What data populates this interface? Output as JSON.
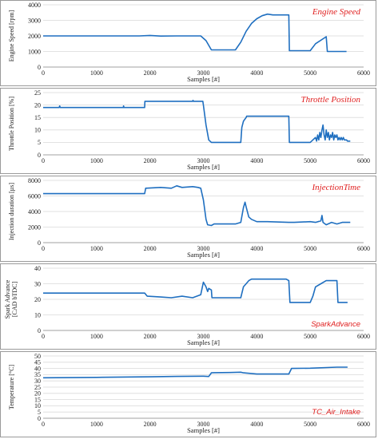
{
  "chart_data": [
    {
      "type": "line",
      "series": [
        {
          "name": "Engine Speed",
          "style": "serif",
          "x": [
            0,
            1500,
            1800,
            2000,
            2200,
            2500,
            2950,
            3050,
            3150,
            3600,
            3700,
            3800,
            3900,
            4000,
            4100,
            4200,
            4300,
            4550,
            4600,
            4610,
            5000,
            5100,
            5300,
            5320,
            5600,
            5680
          ],
          "y": [
            2000,
            2000,
            2000,
            2030,
            1990,
            2000,
            2000,
            1700,
            1100,
            1100,
            1600,
            2300,
            2800,
            3100,
            3300,
            3400,
            3350,
            3350,
            3350,
            1050,
            1050,
            1500,
            1950,
            1000,
            1000,
            1000
          ]
        }
      ],
      "xlabel": "Samples [#]",
      "ylabel": [
        "Engine Speed [rpm]"
      ],
      "xlim": [
        0,
        6000
      ],
      "ylim": [
        0,
        4000
      ],
      "xticks": [
        "0",
        "1000",
        "2000",
        "3000",
        "4000",
        "5000",
        "6000"
      ],
      "yticks": [
        "0",
        "1000",
        "2000",
        "3000",
        "4000"
      ],
      "legend_position": "top-right"
    },
    {
      "type": "line",
      "series": [
        {
          "name": "Throttle Position",
          "style": "serif",
          "x": [
            0,
            300,
            310,
            320,
            1500,
            1505,
            1515,
            1900,
            1905,
            2800,
            2805,
            2815,
            2990,
            3000,
            3050,
            3100,
            3150,
            3200,
            3700,
            3720,
            3750,
            3800,
            3810,
            4600,
            4610,
            5000,
            5050,
            5100,
            5120,
            5140,
            5160,
            5180,
            5200,
            5220,
            5240,
            5260,
            5280,
            5300,
            5320,
            5340,
            5360,
            5380,
            5400,
            5420,
            5440,
            5460,
            5480,
            5500,
            5520,
            5540,
            5560,
            5580,
            5600,
            5620,
            5640,
            5660,
            5680,
            5700,
            5750
          ],
          "y": [
            19,
            19,
            19.6,
            19,
            19,
            19.6,
            19,
            19,
            21.5,
            21.5,
            21.9,
            21.5,
            21.5,
            20,
            12,
            6,
            5,
            5,
            5,
            11,
            13.5,
            15,
            15.5,
            15.5,
            5,
            5,
            6,
            7,
            5.5,
            8,
            6,
            9,
            7,
            10,
            12,
            8,
            6,
            10,
            7,
            9,
            6,
            8,
            7,
            9,
            6,
            8,
            7,
            8,
            6,
            7,
            6,
            7,
            6,
            7,
            6,
            6,
            6,
            5.5,
            5.5
          ]
        }
      ],
      "xlabel": "Samples [#]",
      "ylabel": [
        "Throttle Position  [%]"
      ],
      "xlim": [
        0,
        6000
      ],
      "ylim": [
        0,
        25
      ],
      "xticks": [
        "0",
        "1000",
        "2000",
        "3000",
        "4000",
        "5000",
        "6000"
      ],
      "yticks": [
        "0",
        "5",
        "10",
        "15",
        "20",
        "25"
      ],
      "legend_position": "top-right"
    },
    {
      "type": "line",
      "series": [
        {
          "name": "InjectionTime",
          "style": "serif",
          "x": [
            0,
            1900,
            1920,
            2200,
            2400,
            2500,
            2600,
            2800,
            2900,
            2950,
            3000,
            3050,
            3080,
            3150,
            3200,
            3600,
            3700,
            3750,
            3780,
            3800,
            3850,
            3900,
            4000,
            4200,
            4600,
            4700,
            5000,
            5100,
            5200,
            5220,
            5240,
            5300,
            5400,
            5500,
            5600,
            5700,
            5750
          ],
          "y": [
            6300,
            6300,
            7000,
            7100,
            7000,
            7300,
            7100,
            7200,
            7100,
            7000,
            5500,
            3000,
            2300,
            2200,
            2400,
            2400,
            2600,
            4500,
            5200,
            4600,
            3300,
            3000,
            2700,
            2700,
            2600,
            2600,
            2700,
            2600,
            2800,
            3500,
            2600,
            2300,
            2600,
            2400,
            2600,
            2600,
            2600
          ]
        }
      ],
      "xlabel": "Samples [#]",
      "ylabel": [
        "Injection duration [µs]"
      ],
      "xlim": [
        0,
        6000
      ],
      "ylim": [
        0,
        8000
      ],
      "xticks": [
        "0",
        "1000",
        "2000",
        "3000",
        "4000",
        "5000",
        "6000"
      ],
      "yticks": [
        "0",
        "2000",
        "4000",
        "6000",
        "8000"
      ],
      "legend_position": "top-right"
    },
    {
      "type": "line",
      "series": [
        {
          "name": "SparkAdvance",
          "style": "sans",
          "x": [
            0,
            1900,
            1950,
            2200,
            2400,
            2600,
            2800,
            2950,
            3000,
            3050,
            3080,
            3100,
            3150,
            3160,
            3700,
            3750,
            3800,
            3850,
            3900,
            4000,
            4200,
            4300,
            4550,
            4600,
            4620,
            5000,
            5050,
            5100,
            5200,
            5300,
            5350,
            5500,
            5520,
            5600,
            5700
          ],
          "y": [
            24,
            24,
            22,
            21.5,
            21,
            22,
            21,
            23,
            31,
            28,
            25,
            27,
            26,
            21,
            21,
            28,
            30,
            32,
            33,
            33,
            33,
            33,
            33,
            32,
            18,
            18,
            22,
            28,
            30,
            32,
            32,
            32,
            18,
            18,
            18
          ]
        }
      ],
      "xlabel": "Samples [#]",
      "ylabel": [
        "Spark Advance",
        "[CAD bTDC]"
      ],
      "xlim": [
        0,
        6000
      ],
      "ylim": [
        0,
        40
      ],
      "xticks": [
        "0",
        "1000",
        "2000",
        "3000",
        "4000",
        "5000",
        "6000"
      ],
      "yticks": [
        "0",
        "10",
        "20",
        "30",
        "40"
      ],
      "legend_position": "bottom-right"
    },
    {
      "type": "line",
      "series": [
        {
          "name": "TC_Air_Intake",
          "style": "sans",
          "x": [
            0,
            1000,
            2000,
            2500,
            3000,
            3100,
            3150,
            3200,
            3500,
            3700,
            3750,
            4000,
            4500,
            4600,
            4650,
            5000,
            5500,
            5700
          ],
          "y": [
            32.5,
            32.8,
            33.3,
            33.6,
            33.8,
            33.5,
            36.5,
            36.6,
            36.7,
            37,
            36.5,
            35.5,
            35.5,
            35.5,
            40,
            40.2,
            41,
            41
          ]
        }
      ],
      "xlabel": "Samples [#]",
      "ylabel": [
        "Temperature [°C]"
      ],
      "xlim": [
        0,
        6000
      ],
      "ylim": [
        0,
        50
      ],
      "xticks": [
        "0",
        "1000",
        "2000",
        "3000",
        "4000",
        "5000",
        "6000"
      ],
      "yticks": [
        "0",
        "5",
        "10",
        "15",
        "20",
        "25",
        "30",
        "35",
        "40",
        "45",
        "50"
      ],
      "legend_position": "bottom-right"
    }
  ]
}
